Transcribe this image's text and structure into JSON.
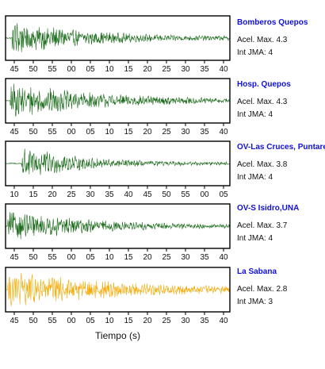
{
  "chart_data": {
    "type": "line",
    "xlabel": "Tiempo (s)",
    "panels": [
      {
        "station": "Bomberos Quepos",
        "accel_label": "Acel. Max. 4.3",
        "intensity_label": "Int JMA: 4",
        "color": "#1a6b1a",
        "tick_labels": [
          "45",
          "50",
          "55",
          "00",
          "05",
          "10",
          "15",
          "20",
          "25",
          "30",
          "35",
          "40"
        ],
        "signal": {
          "duration_s": 60,
          "amplitude": 1.0,
          "onset_fraction": 0.03,
          "decay": 0.055
        }
      },
      {
        "station": "Hosp. Quepos",
        "accel_label": "Acel. Max. 4.3",
        "intensity_label": "Int JMA: 4",
        "color": "#1a6b1a",
        "tick_labels": [
          "45",
          "50",
          "55",
          "00",
          "05",
          "10",
          "15",
          "20",
          "25",
          "30",
          "35",
          "40"
        ],
        "signal": {
          "duration_s": 60,
          "amplitude": 1.0,
          "onset_fraction": 0.02,
          "decay": 0.045
        }
      },
      {
        "station": "OV-Las Cruces, Puntarenas",
        "accel_label": "Acel. Max. 3.8",
        "intensity_label": "Int JMA: 4",
        "color": "#1a6b1a",
        "tick_labels": [
          "10",
          "15",
          "20",
          "25",
          "30",
          "35",
          "40",
          "45",
          "50",
          "55",
          "00",
          "05"
        ],
        "signal": {
          "duration_s": 60,
          "amplitude": 0.95,
          "onset_fraction": 0.07,
          "decay": 0.07
        }
      },
      {
        "station": "OV-S Isidro,UNA",
        "accel_label": "Acel. Max. 3.7",
        "intensity_label": "Int JMA: 4",
        "color": "#1a6b1a",
        "tick_labels": [
          "45",
          "50",
          "55",
          "00",
          "05",
          "10",
          "15",
          "20",
          "25",
          "30",
          "35",
          "40"
        ],
        "signal": {
          "duration_s": 60,
          "amplitude": 0.9,
          "onset_fraction": 0.01,
          "decay": 0.05
        }
      },
      {
        "station": "La Sabana",
        "accel_label": "Acel. Max. 2.8",
        "intensity_label": "Int JMA: 3",
        "color": "#f5a800",
        "tick_labels": [
          "45",
          "50",
          "55",
          "00",
          "05",
          "10",
          "15",
          "20",
          "25",
          "30",
          "35",
          "40"
        ],
        "signal": {
          "duration_s": 60,
          "amplitude": 1.0,
          "onset_fraction": 0.01,
          "decay": 0.035
        }
      }
    ]
  }
}
